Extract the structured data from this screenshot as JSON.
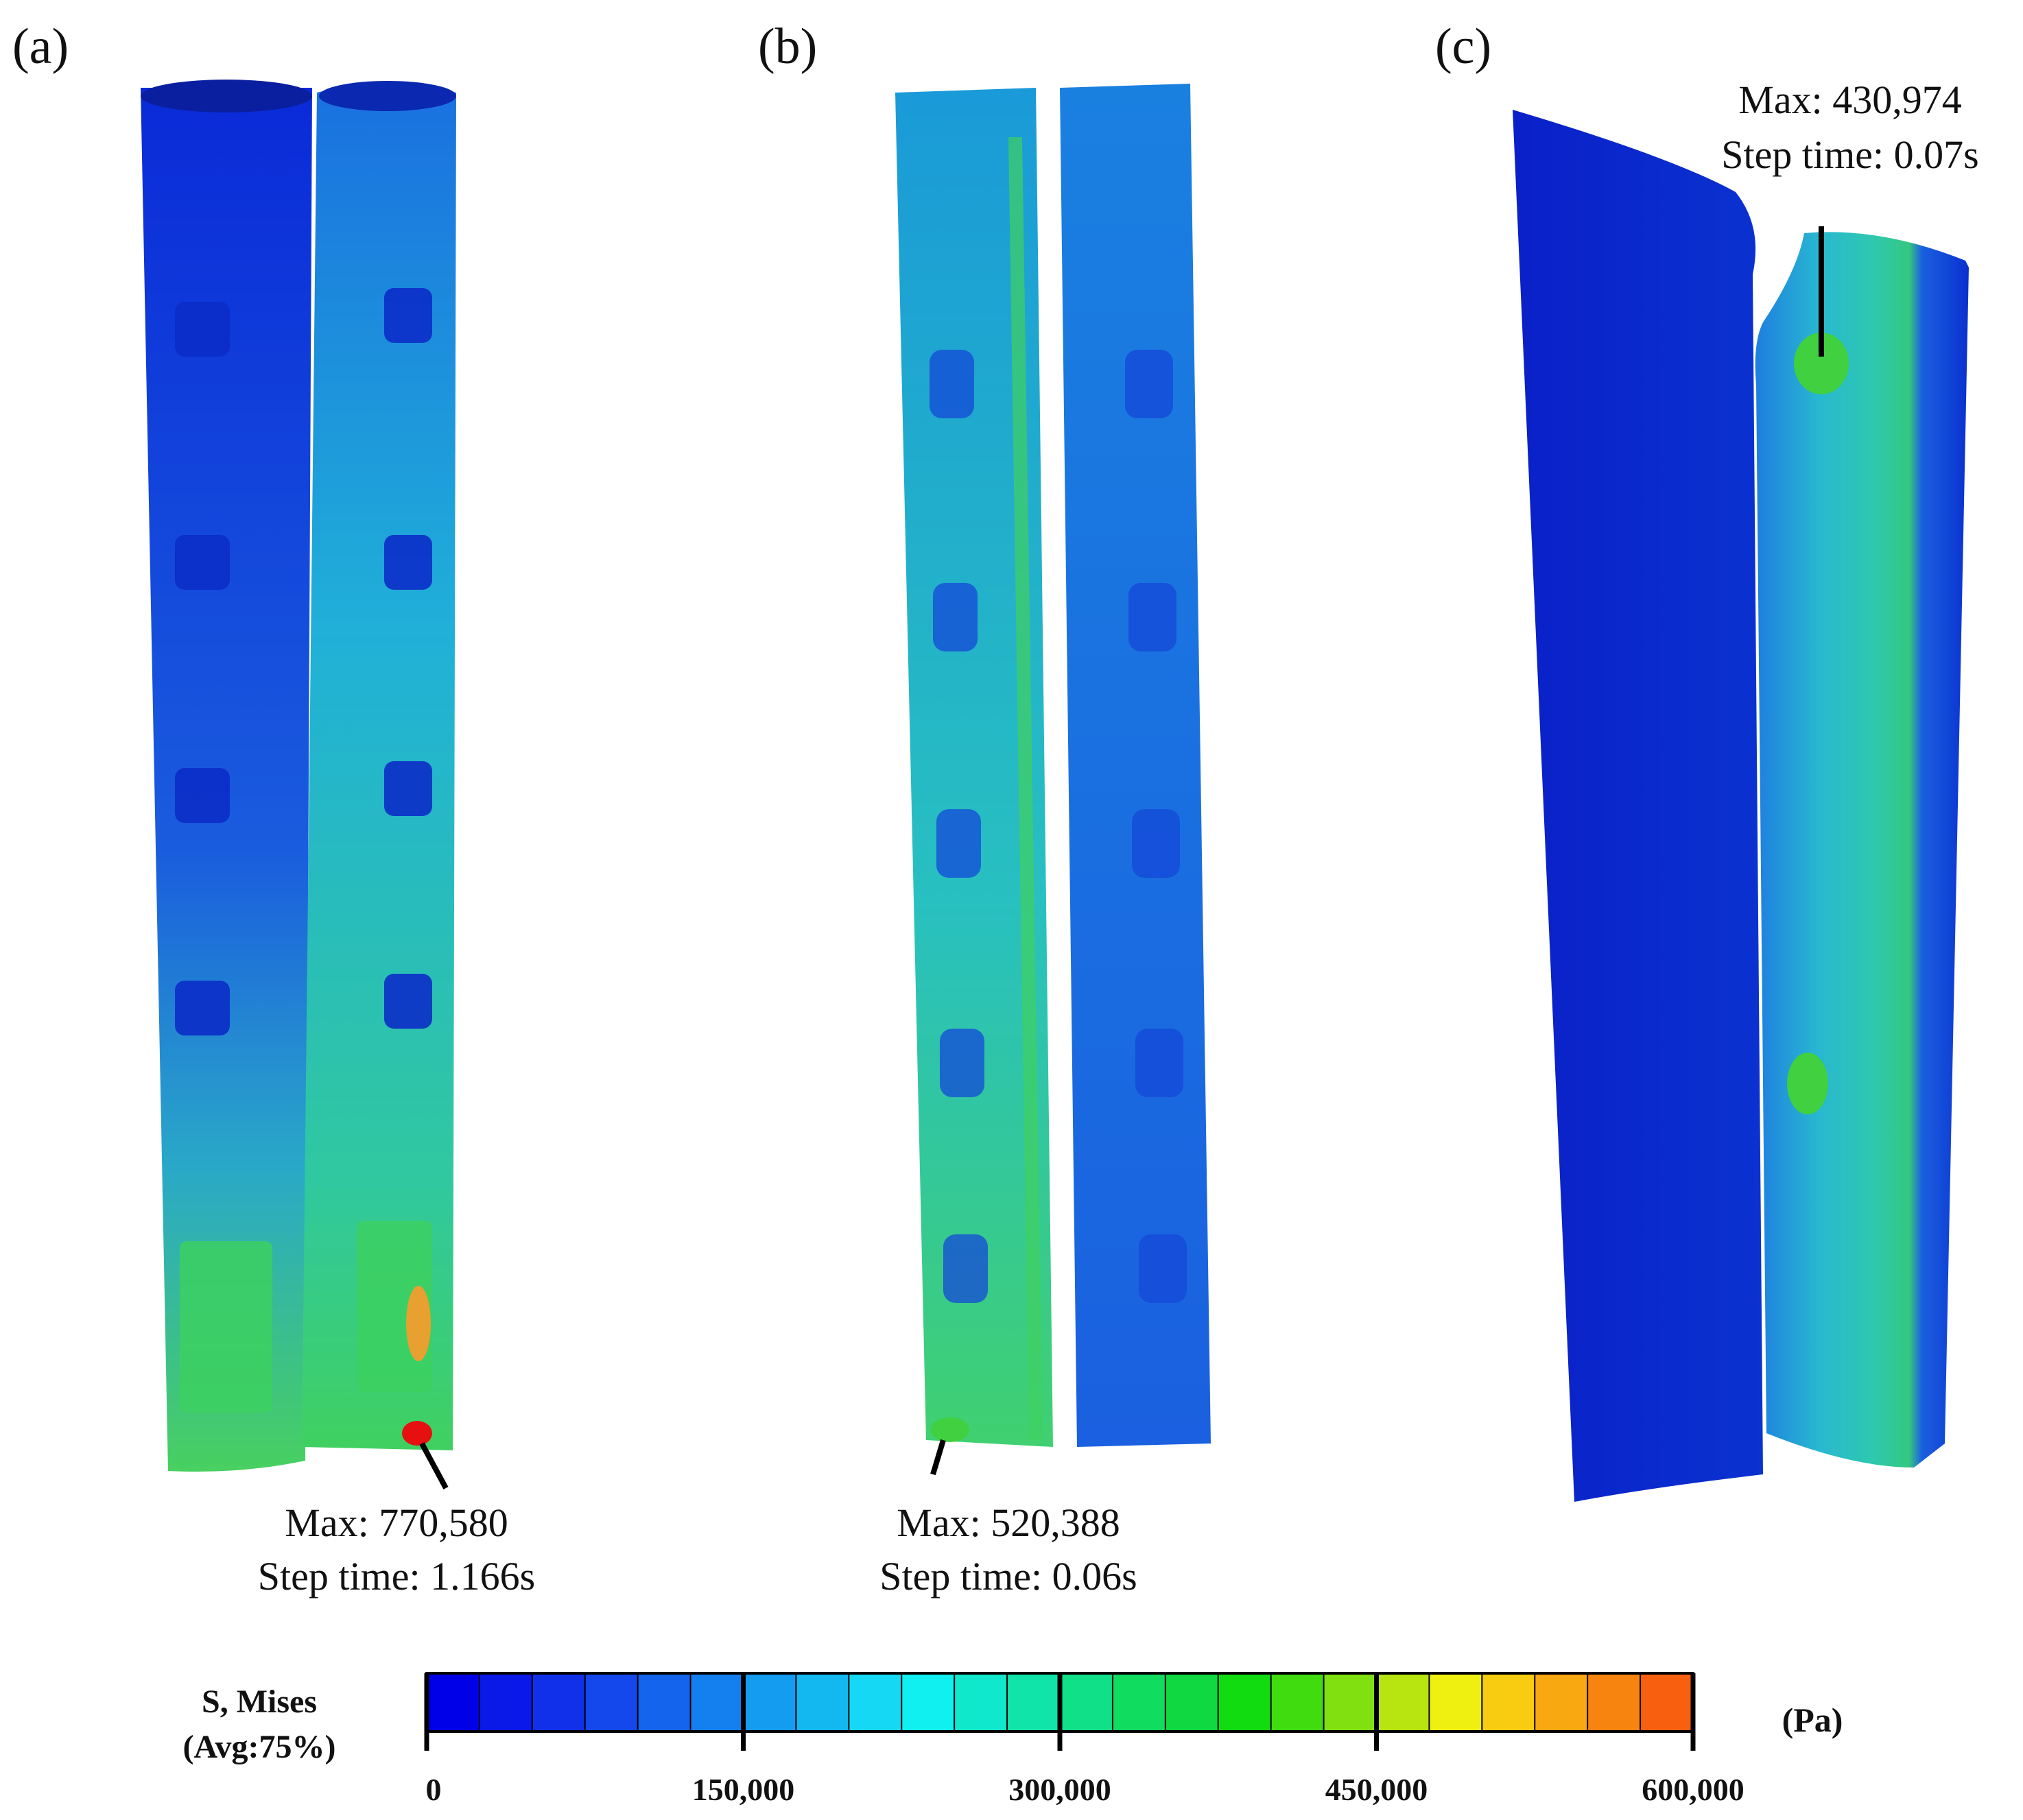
{
  "panels": [
    {
      "label": "(a)",
      "max_label": "Max: 770,580",
      "step_label": "Step time: 1.166s"
    },
    {
      "label": "(b)",
      "max_label": "Max: 520,388",
      "step_label": "Step time: 0.06s"
    },
    {
      "label": "(c)",
      "max_label": "Max: 430,974",
      "step_label": "Step time: 0.07s"
    }
  ],
  "legend": {
    "title_line1": "S, Mises",
    "title_line2": "(Avg:75%)",
    "unit": "(Pa)",
    "ticks": [
      "0",
      "150,000",
      "300,000",
      "450,000",
      "600,000"
    ],
    "range": [
      0,
      600000
    ],
    "segments": 24,
    "colors": [
      "#0000e8",
      "#0a18e8",
      "#1030ea",
      "#1448ec",
      "#1464ee",
      "#1480f0",
      "#149cf0",
      "#14b8f0",
      "#14d8f4",
      "#10f0f0",
      "#10e8cc",
      "#10e4a8",
      "#10e088",
      "#10dc60",
      "#10d840",
      "#10dc10",
      "#40dc10",
      "#80e010",
      "#b8e410",
      "#f0f010",
      "#f8cc10",
      "#f8a810",
      "#f88410",
      "#f86010"
    ]
  },
  "colors": {
    "stress_low": "#0b2fd0",
    "stress_mid": "#22c8c0",
    "stress_high": "#e61010"
  }
}
